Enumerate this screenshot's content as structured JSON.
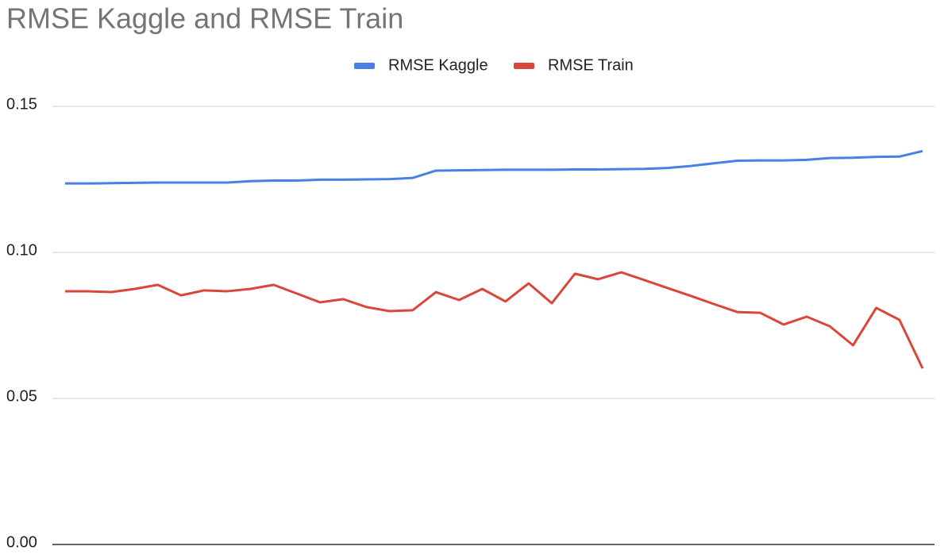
{
  "chart_data": {
    "type": "line",
    "title": "RMSE Kaggle and RMSE Train",
    "categories": [
      null,
      null,
      null,
      null,
      null,
      null,
      null,
      null,
      null,
      null,
      null,
      null,
      null,
      null,
      null,
      null,
      null,
      null,
      null,
      null,
      null,
      null,
      null,
      null,
      null,
      null,
      null,
      null,
      null,
      null,
      null,
      null,
      null,
      null,
      null,
      null,
      null,
      null
    ],
    "series": [
      {
        "name": "RMSE Kaggle",
        "color": "#4a7fe6",
        "values": [
          0.1236,
          0.1236,
          0.1237,
          0.1238,
          0.1239,
          0.1239,
          0.1239,
          0.1239,
          0.1244,
          0.1246,
          0.1246,
          0.1249,
          0.1249,
          0.125,
          0.1251,
          0.1255,
          0.128,
          0.1281,
          0.1282,
          0.1283,
          0.1283,
          0.1283,
          0.1284,
          0.1284,
          0.1285,
          0.1286,
          0.1289,
          0.1296,
          0.1305,
          0.1314,
          0.1315,
          0.1315,
          0.1317,
          0.1323,
          0.1324,
          0.1327,
          0.1328,
          0.1347
        ]
      },
      {
        "name": "RMSE Train",
        "color": "#d9463a",
        "values": [
          0.0867,
          0.0867,
          0.0864,
          0.0875,
          0.0889,
          0.0853,
          0.087,
          0.0867,
          0.0875,
          0.0889,
          0.0859,
          0.0829,
          0.084,
          0.0813,
          0.0799,
          0.0802,
          0.0864,
          0.0837,
          0.0875,
          0.0832,
          0.0894,
          0.0826,
          0.0927,
          0.0908,
          0.0932,
          0.0905,
          0.0878,
          0.0851,
          0.0823,
          0.0796,
          0.0793,
          0.0753,
          0.078,
          0.0747,
          0.0682,
          0.081,
          0.0769,
          0.0603
        ]
      }
    ],
    "ylim": [
      0,
      0.15
    ],
    "yticks": [
      {
        "value": 0,
        "label": "0.00"
      },
      {
        "value": 0.05,
        "label": "0.05"
      },
      {
        "value": 0.1,
        "label": "0.10"
      },
      {
        "value": 0.15,
        "label": "0.15"
      }
    ],
    "grid": true,
    "legend": "top"
  }
}
